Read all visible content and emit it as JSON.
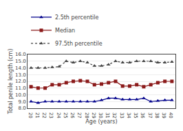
{
  "chart_data": {
    "type": "line",
    "xlabel": "Age (years)",
    "ylabel": "Total penile length (cm)",
    "x": [
      20,
      21,
      22,
      23,
      24,
      25,
      26,
      27,
      28,
      29,
      30,
      31,
      32,
      33,
      34,
      35,
      36,
      37,
      38,
      39,
      40
    ],
    "series": [
      {
        "name": "2.5th percentile",
        "color": "#00008B",
        "marker": "triangle-up",
        "line_style": "solid",
        "values": [
          9.0,
          8.8,
          9.0,
          9.0,
          9.0,
          9.0,
          9.0,
          9.0,
          9.0,
          9.0,
          9.2,
          9.5,
          9.5,
          9.3,
          9.3,
          9.3,
          9.5,
          9.0,
          9.1,
          9.2,
          9.2
        ]
      },
      {
        "name": "Median",
        "color": "#8B1A1A",
        "marker": "square",
        "line_style": "solid",
        "values": [
          11.2,
          11.0,
          11.0,
          11.5,
          11.5,
          11.8,
          12.0,
          12.1,
          12.0,
          11.5,
          11.6,
          11.8,
          12.0,
          11.3,
          11.3,
          11.5,
          11.2,
          11.5,
          11.8,
          12.0,
          12.0
        ]
      },
      {
        "name": "97.5th percentile",
        "color": "#444444",
        "marker": "triangle-up",
        "line_style": "dotted",
        "values": [
          14.0,
          14.0,
          14.0,
          14.1,
          14.2,
          15.0,
          14.8,
          15.0,
          14.8,
          14.3,
          14.3,
          14.5,
          15.0,
          14.8,
          14.8,
          15.0,
          15.0,
          15.0,
          14.8,
          14.8,
          14.9
        ]
      }
    ],
    "xlim": [
      19.5,
      40.5
    ],
    "xticks": [
      20,
      21,
      22,
      23,
      24,
      25,
      26,
      27,
      28,
      29,
      30,
      31,
      32,
      33,
      34,
      35,
      36,
      37,
      38,
      39,
      40
    ],
    "ylim": [
      8.0,
      16.0
    ],
    "yticks": [
      {
        "value": 8.0,
        "label": "8.0"
      },
      {
        "value": 9.0,
        "label": "9.0"
      },
      {
        "value": 10.0,
        "label": "10.0"
      },
      {
        "value": 11.0,
        "label": "11.0"
      },
      {
        "value": 12.0,
        "label": "12.0"
      },
      {
        "value": 13.0,
        "label": "13.0"
      },
      {
        "value": 14.0,
        "label": "14.0"
      },
      {
        "value": 15.0,
        "label": "15.0"
      },
      {
        "value": 16.0,
        "label": "16.0"
      }
    ],
    "grid": "y",
    "legend": "upper left"
  }
}
